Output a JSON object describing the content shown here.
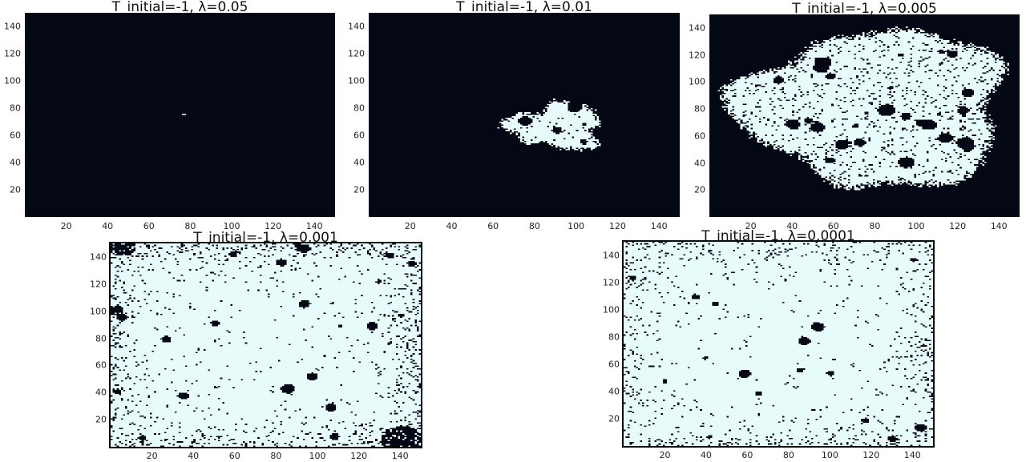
{
  "chart_data": [
    {
      "type": "heatmap",
      "title": "T_initial=-1, λ=0.05",
      "xlim": [
        0,
        150
      ],
      "ylim": [
        0,
        150
      ],
      "xticks": [
        20,
        40,
        60,
        80,
        100,
        120,
        140
      ],
      "yticks": [
        20,
        40,
        60,
        80,
        100,
        120,
        140
      ],
      "colors": {
        "spin_down": "#040814",
        "spin_up": "#e8fbfb"
      },
      "spin_up_fraction": 0.0001,
      "cluster_center": [
        76,
        75
      ]
    },
    {
      "type": "heatmap",
      "title": "T_initial=-1, λ=0.01",
      "xlim": [
        0,
        150
      ],
      "ylim": [
        0,
        150
      ],
      "xticks": [
        20,
        40,
        60,
        80,
        100,
        120,
        140
      ],
      "yticks": [
        20,
        40,
        60,
        80,
        100,
        120,
        140
      ],
      "colors": {
        "spin_down": "#040814",
        "spin_up": "#e8fbfb"
      },
      "spin_up_fraction": 0.11,
      "cluster_center": [
        90,
        66
      ]
    },
    {
      "type": "heatmap",
      "title": "T_initial=-1, λ=0.005",
      "xlim": [
        0,
        150
      ],
      "ylim": [
        0,
        150
      ],
      "xticks": [
        20,
        40,
        60,
        80,
        100,
        120,
        140
      ],
      "yticks": [
        20,
        40,
        60,
        80,
        100,
        120,
        140
      ],
      "colors": {
        "spin_down": "#040814",
        "spin_up": "#e8fbfb"
      },
      "spin_up_fraction": 0.55,
      "cluster_center": [
        80,
        80
      ]
    },
    {
      "type": "heatmap",
      "title": "T_initial=-1, λ=0.001",
      "xlim": [
        0,
        150
      ],
      "ylim": [
        0,
        150
      ],
      "xticks": [
        20,
        40,
        60,
        80,
        100,
        120,
        140
      ],
      "yticks": [
        20,
        40,
        60,
        80,
        100,
        120,
        140
      ],
      "colors": {
        "spin_down": "#040814",
        "spin_up": "#e8fbfb"
      },
      "spin_up_fraction": 0.92
    },
    {
      "type": "heatmap",
      "title": "T_initial=-1, λ=0.0001",
      "xlim": [
        0,
        150
      ],
      "ylim": [
        0,
        150
      ],
      "xticks": [
        20,
        40,
        60,
        80,
        100,
        120,
        140
      ],
      "yticks": [
        20,
        40,
        60,
        80,
        100,
        120,
        140
      ],
      "colors": {
        "spin_down": "#040814",
        "spin_up": "#e8fbfb"
      },
      "spin_up_fraction": 0.94
    }
  ]
}
